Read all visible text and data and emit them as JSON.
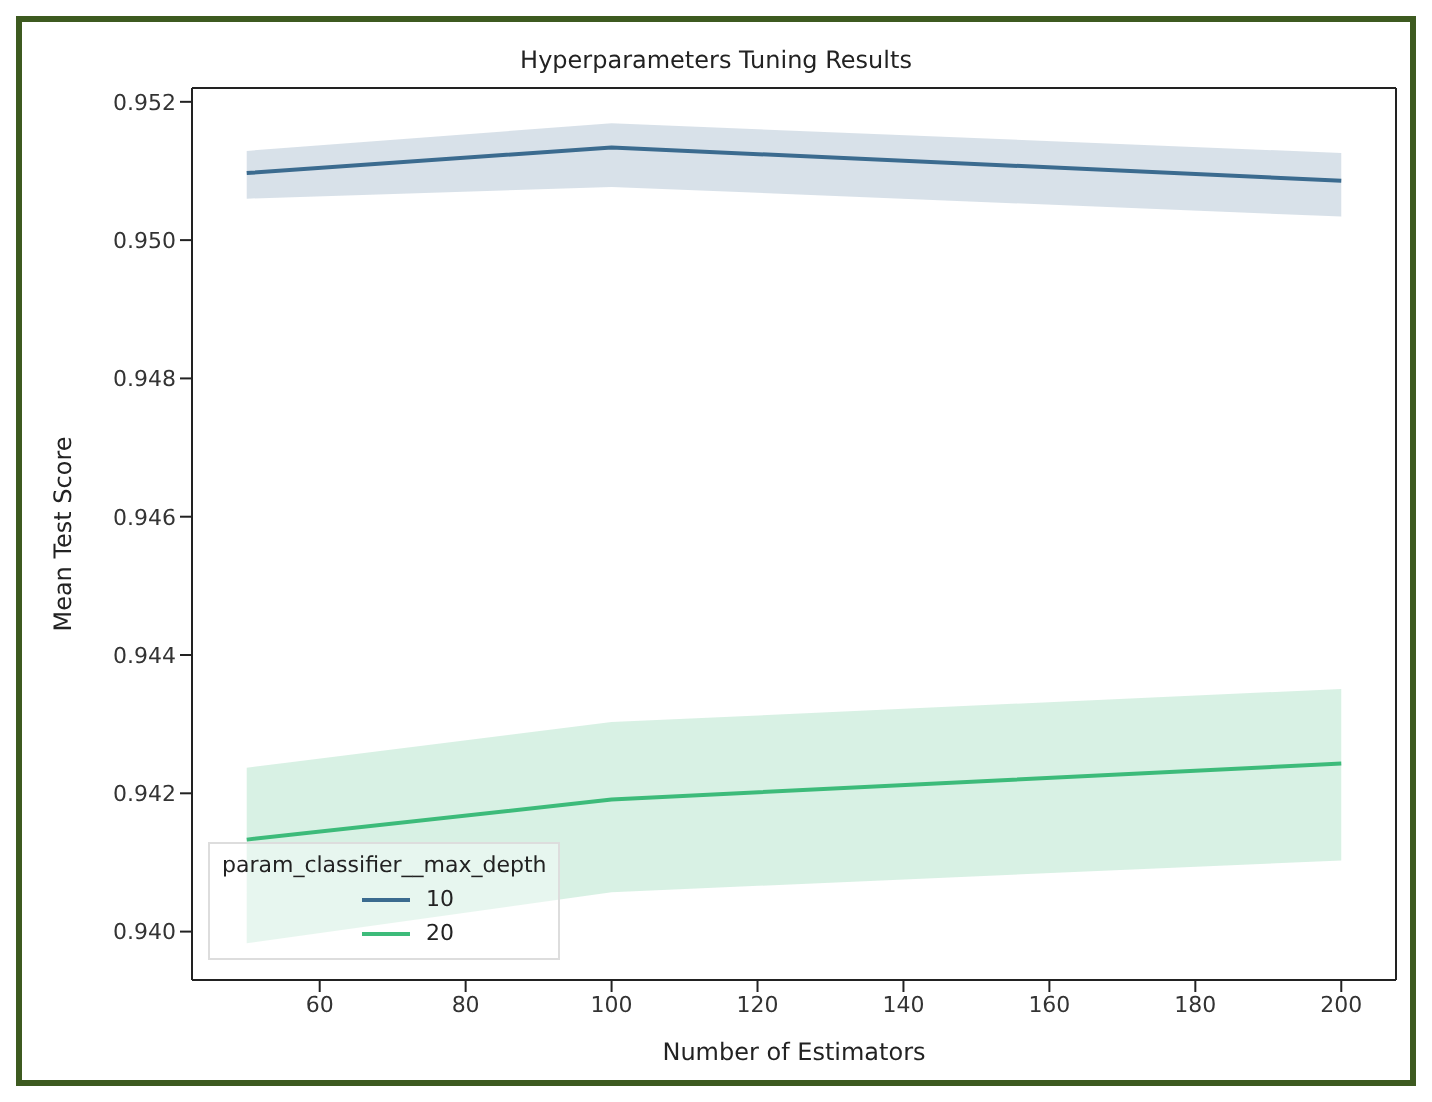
{
  "chart_data": {
    "type": "line",
    "title": "Hyperparameters Tuning Results",
    "xlabel": "Number of Estimators",
    "ylabel": "Mean Test Score",
    "legend_title": "param_classifier__max_depth",
    "x": [
      50,
      100,
      200
    ],
    "series": [
      {
        "name": "10",
        "color": "#3b6b8f",
        "values": [
          0.95097,
          0.95134,
          0.95086
        ],
        "lower": [
          0.9506,
          0.95077,
          0.95034
        ],
        "upper": [
          0.95129,
          0.95169,
          0.95126
        ]
      },
      {
        "name": "20",
        "color": "#3dbb7a",
        "values": [
          0.94133,
          0.94191,
          0.94243
        ],
        "lower": [
          0.93983,
          0.94057,
          0.94103
        ],
        "upper": [
          0.94237,
          0.94303,
          0.94351
        ]
      }
    ],
    "xlim": [
      42.5,
      207.5
    ],
    "xticks": [
      60,
      80,
      100,
      120,
      140,
      160,
      180,
      200
    ],
    "ylim": [
      0.9393,
      0.9522
    ],
    "yticks": [
      {
        "value": 0.94,
        "label": "0.940"
      },
      {
        "value": 0.942,
        "label": "0.942"
      },
      {
        "value": 0.944,
        "label": "0.944"
      },
      {
        "value": 0.946,
        "label": "0.946"
      },
      {
        "value": 0.948,
        "label": "0.948"
      },
      {
        "value": 0.95,
        "label": "0.950"
      },
      {
        "value": 0.952,
        "label": "0.952"
      }
    ],
    "grid": false,
    "legend": "bottom left",
    "marker": "none",
    "line_style": "solid"
  }
}
